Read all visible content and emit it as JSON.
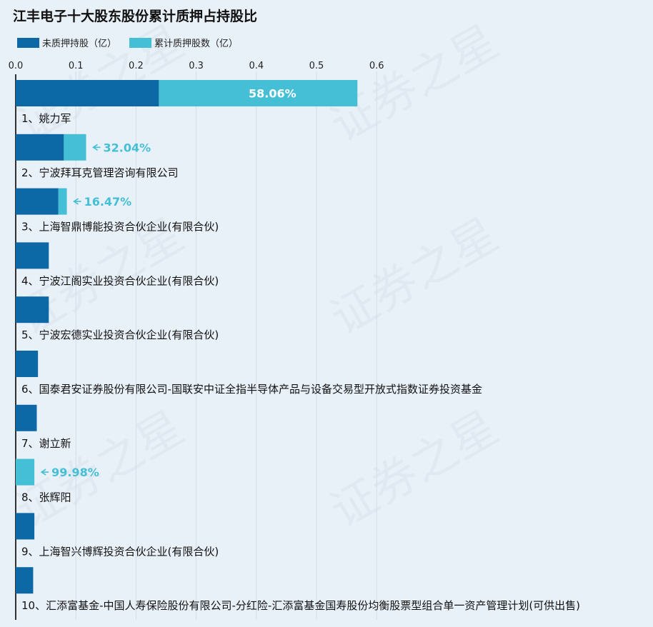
{
  "chart_data": {
    "type": "bar",
    "orientation": "horizontal",
    "stacked": true,
    "title": "江丰电子十大股东股份累计质押占持股比",
    "legend": {
      "position": "top-left",
      "entries": [
        {
          "label": "未质押持股（亿）",
          "color": "#0d68a6"
        },
        {
          "label": "累计质押股数（亿）",
          "color": "#45bfd6"
        }
      ]
    },
    "xlim": [
      0,
      0.6
    ],
    "xticks": [
      "0.0",
      "0.1",
      "0.2",
      "0.3",
      "0.4",
      "0.5",
      "0.6"
    ],
    "grid": true,
    "categories": [
      "1、姚力军",
      "2、宁波拜耳克管理咨询有限公司",
      "3、上海智鼎博能投资合伙企业(有限合伙)",
      "4、宁波江阁实业投资合伙企业(有限合伙)",
      "5、宁波宏德实业投资合伙企业(有限合伙)",
      "6、国泰君安证券股份有限公司-国联安中证全指半导体产品与设备交易型开放式指数证券投资基金",
      "7、谢立新",
      "8、张辉阳",
      "9、上海智兴博辉投资合伙企业(有限合伙)",
      "10、汇添富基金-中国人寿保险股份有限公司-分红险-汇添富基金国寿股份均衡股票型组合单一资产管理计划(可供出售)"
    ],
    "series": [
      {
        "name": "未质押持股（亿）",
        "color": "#0d68a6",
        "values": [
          0.238,
          0.08,
          0.071,
          0.055,
          0.055,
          0.037,
          0.035,
          0.0,
          0.031,
          0.029
        ]
      },
      {
        "name": "累计质押股数（亿）",
        "color": "#45bfd6",
        "values": [
          0.33,
          0.037,
          0.014,
          0.0,
          0.0,
          0.0,
          0.0,
          0.031,
          0.0,
          0.0
        ]
      }
    ],
    "pledge_ratio_labels": [
      "58.06%",
      "32.04%",
      "16.47%",
      "",
      "",
      "",
      "",
      "99.98%",
      "",
      ""
    ]
  },
  "watermark": "证券之星"
}
